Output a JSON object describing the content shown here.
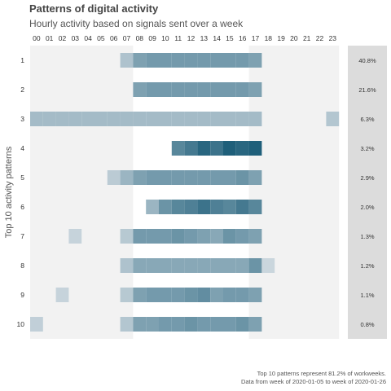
{
  "chart_data": {
    "type": "heatmap",
    "title": "Patterns of digital activity",
    "subtitle": "Hourly activity based on signals sent over a week",
    "ylabel": "Top 10 activity patterns",
    "x_categories": [
      "00",
      "01",
      "02",
      "03",
      "04",
      "05",
      "06",
      "07",
      "08",
      "09",
      "10",
      "11",
      "12",
      "13",
      "14",
      "15",
      "16",
      "17",
      "18",
      "19",
      "20",
      "21",
      "22",
      "23"
    ],
    "y_categories": [
      "1",
      "2",
      "3",
      "4",
      "5",
      "6",
      "7",
      "8",
      "9",
      "10"
    ],
    "working_hours_highlight": {
      "start_hour": "08",
      "end_hour": "17"
    },
    "patterns": [
      {
        "label": "1",
        "share": "40.8%",
        "values": [
          0,
          0,
          0,
          0,
          0,
          0,
          0,
          0.25,
          0.5,
          0.55,
          0.55,
          0.55,
          0.55,
          0.55,
          0.55,
          0.55,
          0.55,
          0.5,
          0,
          0,
          0,
          0,
          0,
          0
        ]
      },
      {
        "label": "2",
        "share": "21.6%",
        "values": [
          0,
          0,
          0,
          0,
          0,
          0,
          0,
          0,
          0.5,
          0.55,
          0.55,
          0.55,
          0.55,
          0.55,
          0.55,
          0.55,
          0.55,
          0.5,
          0,
          0,
          0,
          0,
          0,
          0
        ]
      },
      {
        "label": "3",
        "share": "6.3%",
        "values": [
          0.3,
          0.3,
          0.3,
          0.3,
          0.3,
          0.3,
          0.3,
          0.3,
          0.3,
          0.3,
          0.3,
          0.3,
          0.3,
          0.3,
          0.3,
          0.3,
          0.3,
          0.3,
          0,
          0,
          0,
          0,
          0,
          0.22
        ]
      },
      {
        "label": "4",
        "share": "3.2%",
        "values": [
          0,
          0,
          0,
          0,
          0,
          0,
          0,
          0,
          0,
          0,
          0,
          0.7,
          0.8,
          0.95,
          0.85,
          1.0,
          0.95,
          1.0,
          0,
          0,
          0,
          0,
          0,
          0
        ]
      },
      {
        "label": "5",
        "share": "2.9%",
        "values": [
          0,
          0,
          0,
          0,
          0,
          0,
          0.18,
          0.35,
          0.5,
          0.55,
          0.55,
          0.55,
          0.55,
          0.55,
          0.55,
          0.55,
          0.6,
          0.5,
          0,
          0,
          0,
          0,
          0,
          0
        ]
      },
      {
        "label": "6",
        "share": "2.0%",
        "values": [
          0,
          0,
          0,
          0,
          0,
          0,
          0,
          0,
          0,
          0.35,
          0.6,
          0.7,
          0.75,
          0.85,
          0.75,
          0.7,
          0.8,
          0.7,
          0,
          0,
          0,
          0,
          0,
          0
        ]
      },
      {
        "label": "7",
        "share": "1.3%",
        "values": [
          0,
          0,
          0,
          0.12,
          0,
          0,
          0,
          0.2,
          0.55,
          0.55,
          0.55,
          0.6,
          0.55,
          0.5,
          0.45,
          0.6,
          0.55,
          0.5,
          0,
          0,
          0,
          0,
          0,
          0
        ]
      },
      {
        "label": "8",
        "share": "1.2%",
        "values": [
          0,
          0,
          0,
          0,
          0,
          0,
          0,
          0.25,
          0.45,
          0.45,
          0.45,
          0.45,
          0.45,
          0.45,
          0.45,
          0.45,
          0.45,
          0.6,
          0.1,
          0,
          0,
          0,
          0,
          0
        ]
      },
      {
        "label": "9",
        "share": "1.1%",
        "values": [
          0,
          0,
          0.12,
          0,
          0,
          0,
          0,
          0.2,
          0.5,
          0.55,
          0.55,
          0.55,
          0.6,
          0.65,
          0.5,
          0.55,
          0.55,
          0.5,
          0,
          0,
          0,
          0,
          0,
          0
        ]
      },
      {
        "label": "10",
        "share": "0.8%",
        "values": [
          0.15,
          0,
          0,
          0,
          0,
          0,
          0,
          0.22,
          0.5,
          0.5,
          0.55,
          0.55,
          0.6,
          0.55,
          0.55,
          0.55,
          0.6,
          0.5,
          0,
          0,
          0,
          0,
          0,
          0
        ]
      }
    ],
    "colors": {
      "low": "#dde3e8",
      "high": "#1f5f7a",
      "background": "#f2f2f2",
      "highlight": "#ffffff",
      "share_panel": "#dcdcdc"
    },
    "grid": false,
    "legend": "none"
  },
  "caption": {
    "line1": "Top 10 patterns represent 81.2% of workweeks.",
    "line2": "Data from week of 2020-01-05 to week of 2020-01-26"
  }
}
